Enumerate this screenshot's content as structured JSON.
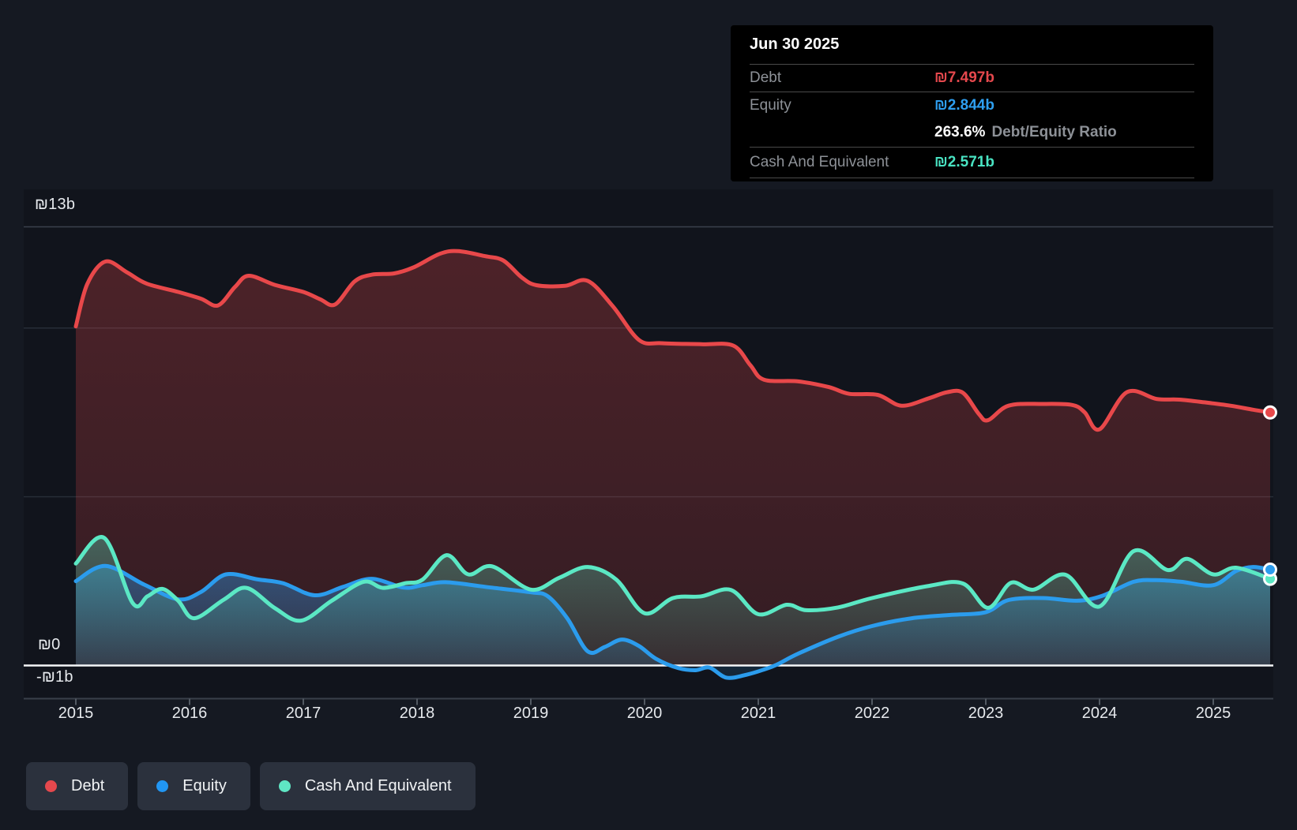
{
  "tooltip": {
    "title": "Jun 30 2025",
    "debt_label": "Debt",
    "debt_value": "₪7.497b",
    "equity_label": "Equity",
    "equity_value": "₪2.844b",
    "ratio_value": "263.6%",
    "ratio_label": "Debt/Equity Ratio",
    "cash_label": "Cash And Equivalent",
    "cash_value": "₪2.571b"
  },
  "axis": {
    "y_top_label": "₪13b",
    "y_zero_label": "₪0",
    "y_neg_label": "-₪1b",
    "x_tick_labels": [
      "2015",
      "2016",
      "2017",
      "2018",
      "2019",
      "2020",
      "2021",
      "2022",
      "2023",
      "2024",
      "2025"
    ]
  },
  "legend": {
    "items": [
      {
        "label": "Debt",
        "color": "#e5484d"
      },
      {
        "label": "Equity",
        "color": "#2196f3"
      },
      {
        "label": "Cash And Equivalent",
        "color": "#5fe6c4"
      }
    ]
  },
  "colors": {
    "debt_line": "#e8484a",
    "equity_line": "#2b9ced",
    "cash_line": "#5be8c4",
    "debt_value_text": "#e5484d",
    "equity_value_text": "#2e9ff0",
    "cash_value_text": "#49e3c2",
    "zero_line": "#f5f6f8",
    "gridline": "#272d37",
    "gridline_top": "#3a414c",
    "axis_line": "#39404a"
  },
  "chart_data": {
    "type": "area",
    "title": "",
    "unit": "₪ billions",
    "ylim": [
      -1,
      13
    ],
    "gridline_values": [
      13,
      10,
      5,
      0
    ],
    "x_years": [
      2015,
      2025.5
    ],
    "legend_position": "bottom",
    "last_point_date": "Jun 30 2025",
    "series": [
      {
        "name": "Debt",
        "end_value": 7.497,
        "points": [
          [
            2015.0,
            10.05
          ],
          [
            2015.1,
            11.3
          ],
          [
            2015.26,
            11.97
          ],
          [
            2015.45,
            11.65
          ],
          [
            2015.62,
            11.32
          ],
          [
            2015.9,
            11.07
          ],
          [
            2016.1,
            10.87
          ],
          [
            2016.25,
            10.67
          ],
          [
            2016.4,
            11.22
          ],
          [
            2016.52,
            11.55
          ],
          [
            2016.75,
            11.28
          ],
          [
            2017.0,
            11.07
          ],
          [
            2017.15,
            10.85
          ],
          [
            2017.28,
            10.7
          ],
          [
            2017.45,
            11.38
          ],
          [
            2017.6,
            11.58
          ],
          [
            2017.8,
            11.62
          ],
          [
            2017.97,
            11.8
          ],
          [
            2018.2,
            12.2
          ],
          [
            2018.36,
            12.28
          ],
          [
            2018.6,
            12.13
          ],
          [
            2018.76,
            12.0
          ],
          [
            2018.92,
            11.5
          ],
          [
            2019.05,
            11.27
          ],
          [
            2019.3,
            11.25
          ],
          [
            2019.5,
            11.4
          ],
          [
            2019.72,
            10.65
          ],
          [
            2019.95,
            9.65
          ],
          [
            2020.15,
            9.55
          ],
          [
            2020.5,
            9.52
          ],
          [
            2020.78,
            9.48
          ],
          [
            2020.93,
            8.9
          ],
          [
            2021.05,
            8.47
          ],
          [
            2021.35,
            8.42
          ],
          [
            2021.62,
            8.25
          ],
          [
            2021.8,
            8.05
          ],
          [
            2022.05,
            8.02
          ],
          [
            2022.26,
            7.7
          ],
          [
            2022.5,
            7.92
          ],
          [
            2022.66,
            8.1
          ],
          [
            2022.8,
            8.08
          ],
          [
            2022.94,
            7.45
          ],
          [
            2023.02,
            7.27
          ],
          [
            2023.2,
            7.7
          ],
          [
            2023.5,
            7.75
          ],
          [
            2023.76,
            7.72
          ],
          [
            2023.87,
            7.5
          ],
          [
            2024.0,
            7.0
          ],
          [
            2024.24,
            8.1
          ],
          [
            2024.5,
            7.9
          ],
          [
            2024.7,
            7.88
          ],
          [
            2024.92,
            7.8
          ],
          [
            2025.15,
            7.7
          ],
          [
            2025.35,
            7.58
          ],
          [
            2025.5,
            7.5
          ]
        ]
      },
      {
        "name": "Equity",
        "end_value": 2.844,
        "points": [
          [
            2015.0,
            2.5
          ],
          [
            2015.26,
            2.95
          ],
          [
            2015.6,
            2.4
          ],
          [
            2015.9,
            1.96
          ],
          [
            2016.1,
            2.18
          ],
          [
            2016.32,
            2.7
          ],
          [
            2016.6,
            2.55
          ],
          [
            2016.82,
            2.44
          ],
          [
            2017.1,
            2.08
          ],
          [
            2017.35,
            2.33
          ],
          [
            2017.6,
            2.57
          ],
          [
            2017.88,
            2.31
          ],
          [
            2018.05,
            2.38
          ],
          [
            2018.25,
            2.47
          ],
          [
            2018.6,
            2.33
          ],
          [
            2019.0,
            2.17
          ],
          [
            2019.15,
            2.05
          ],
          [
            2019.32,
            1.4
          ],
          [
            2019.5,
            0.42
          ],
          [
            2019.65,
            0.55
          ],
          [
            2019.8,
            0.77
          ],
          [
            2019.95,
            0.58
          ],
          [
            2020.1,
            0.2
          ],
          [
            2020.3,
            -0.08
          ],
          [
            2020.45,
            -0.14
          ],
          [
            2020.57,
            -0.06
          ],
          [
            2020.72,
            -0.36
          ],
          [
            2020.9,
            -0.27
          ],
          [
            2021.05,
            -0.12
          ],
          [
            2021.16,
            0.02
          ],
          [
            2021.35,
            0.35
          ],
          [
            2021.7,
            0.85
          ],
          [
            2022.0,
            1.17
          ],
          [
            2022.35,
            1.4
          ],
          [
            2022.7,
            1.5
          ],
          [
            2023.0,
            1.58
          ],
          [
            2023.2,
            1.94
          ],
          [
            2023.5,
            2.0
          ],
          [
            2023.8,
            1.92
          ],
          [
            2024.02,
            2.06
          ],
          [
            2024.3,
            2.48
          ],
          [
            2024.5,
            2.53
          ],
          [
            2024.72,
            2.48
          ],
          [
            2025.0,
            2.38
          ],
          [
            2025.2,
            2.8
          ],
          [
            2025.35,
            2.92
          ],
          [
            2025.5,
            2.84
          ]
        ]
      },
      {
        "name": "Cash And Equivalent",
        "end_value": 2.571,
        "points": [
          [
            2015.0,
            3.02
          ],
          [
            2015.25,
            3.78
          ],
          [
            2015.5,
            1.85
          ],
          [
            2015.63,
            2.05
          ],
          [
            2015.76,
            2.27
          ],
          [
            2015.9,
            1.92
          ],
          [
            2016.04,
            1.4
          ],
          [
            2016.3,
            1.95
          ],
          [
            2016.5,
            2.3
          ],
          [
            2016.75,
            1.7
          ],
          [
            2016.98,
            1.33
          ],
          [
            2017.25,
            1.92
          ],
          [
            2017.53,
            2.48
          ],
          [
            2017.7,
            2.3
          ],
          [
            2017.9,
            2.44
          ],
          [
            2018.05,
            2.55
          ],
          [
            2018.26,
            3.27
          ],
          [
            2018.45,
            2.7
          ],
          [
            2018.66,
            2.94
          ],
          [
            2019.0,
            2.25
          ],
          [
            2019.25,
            2.6
          ],
          [
            2019.5,
            2.92
          ],
          [
            2019.75,
            2.55
          ],
          [
            2020.0,
            1.55
          ],
          [
            2020.25,
            2.0
          ],
          [
            2020.5,
            2.05
          ],
          [
            2020.76,
            2.24
          ],
          [
            2021.0,
            1.52
          ],
          [
            2021.25,
            1.8
          ],
          [
            2021.42,
            1.64
          ],
          [
            2021.7,
            1.72
          ],
          [
            2022.0,
            2.0
          ],
          [
            2022.5,
            2.36
          ],
          [
            2022.8,
            2.43
          ],
          [
            2023.02,
            1.71
          ],
          [
            2023.22,
            2.45
          ],
          [
            2023.42,
            2.25
          ],
          [
            2023.7,
            2.69
          ],
          [
            2024.0,
            1.75
          ],
          [
            2024.3,
            3.39
          ],
          [
            2024.6,
            2.83
          ],
          [
            2024.77,
            3.16
          ],
          [
            2025.0,
            2.7
          ],
          [
            2025.2,
            2.9
          ],
          [
            2025.5,
            2.57
          ]
        ]
      }
    ]
  }
}
